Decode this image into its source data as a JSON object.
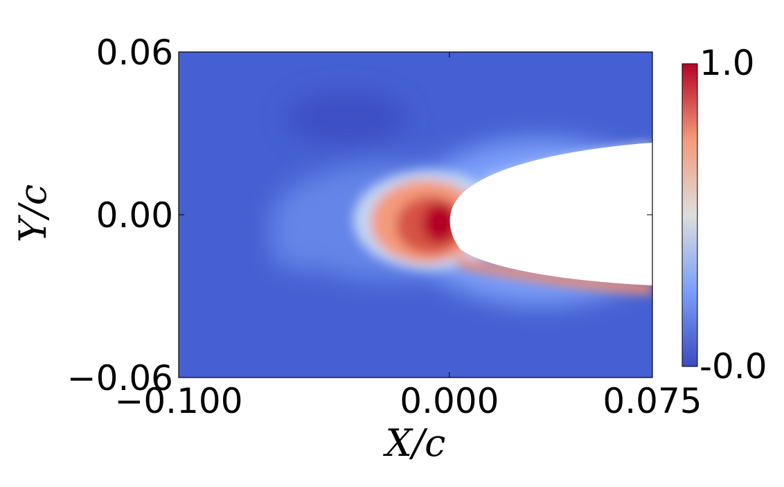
{
  "chart_data": {
    "type": "heatmap",
    "title": "",
    "xlabel": "X/c",
    "ylabel": "Y/c",
    "xlim": [
      -0.1,
      0.075
    ],
    "ylim": [
      -0.06,
      0.06
    ],
    "x_ticks": [
      -0.1,
      0.0,
      0.075
    ],
    "x_tick_labels": [
      "−0.100",
      "0.000",
      "0.075"
    ],
    "y_ticks": [
      -0.06,
      0.0,
      0.06
    ],
    "y_tick_labels": [
      "−0.06",
      "0.00",
      "0.06"
    ],
    "colorbar": {
      "min": 0.0,
      "max": 1.0,
      "tick_labels": [
        "1.0",
        "-0.0"
      ],
      "colormap": "coolwarm",
      "colors": [
        "#3b4cc0",
        "#7b9ff9",
        "#dddddd",
        "#f49a7b",
        "#b40426"
      ]
    },
    "field": {
      "background_value": 0.05,
      "peak_value": 1.0,
      "peak_location": [
        -0.005,
        -0.008
      ],
      "airfoil_leading_edge": [
        0.0,
        0.0
      ],
      "airfoil_half_thickness_at_x_max": 0.026
    },
    "grid": false,
    "legend": "colorbar-right"
  }
}
